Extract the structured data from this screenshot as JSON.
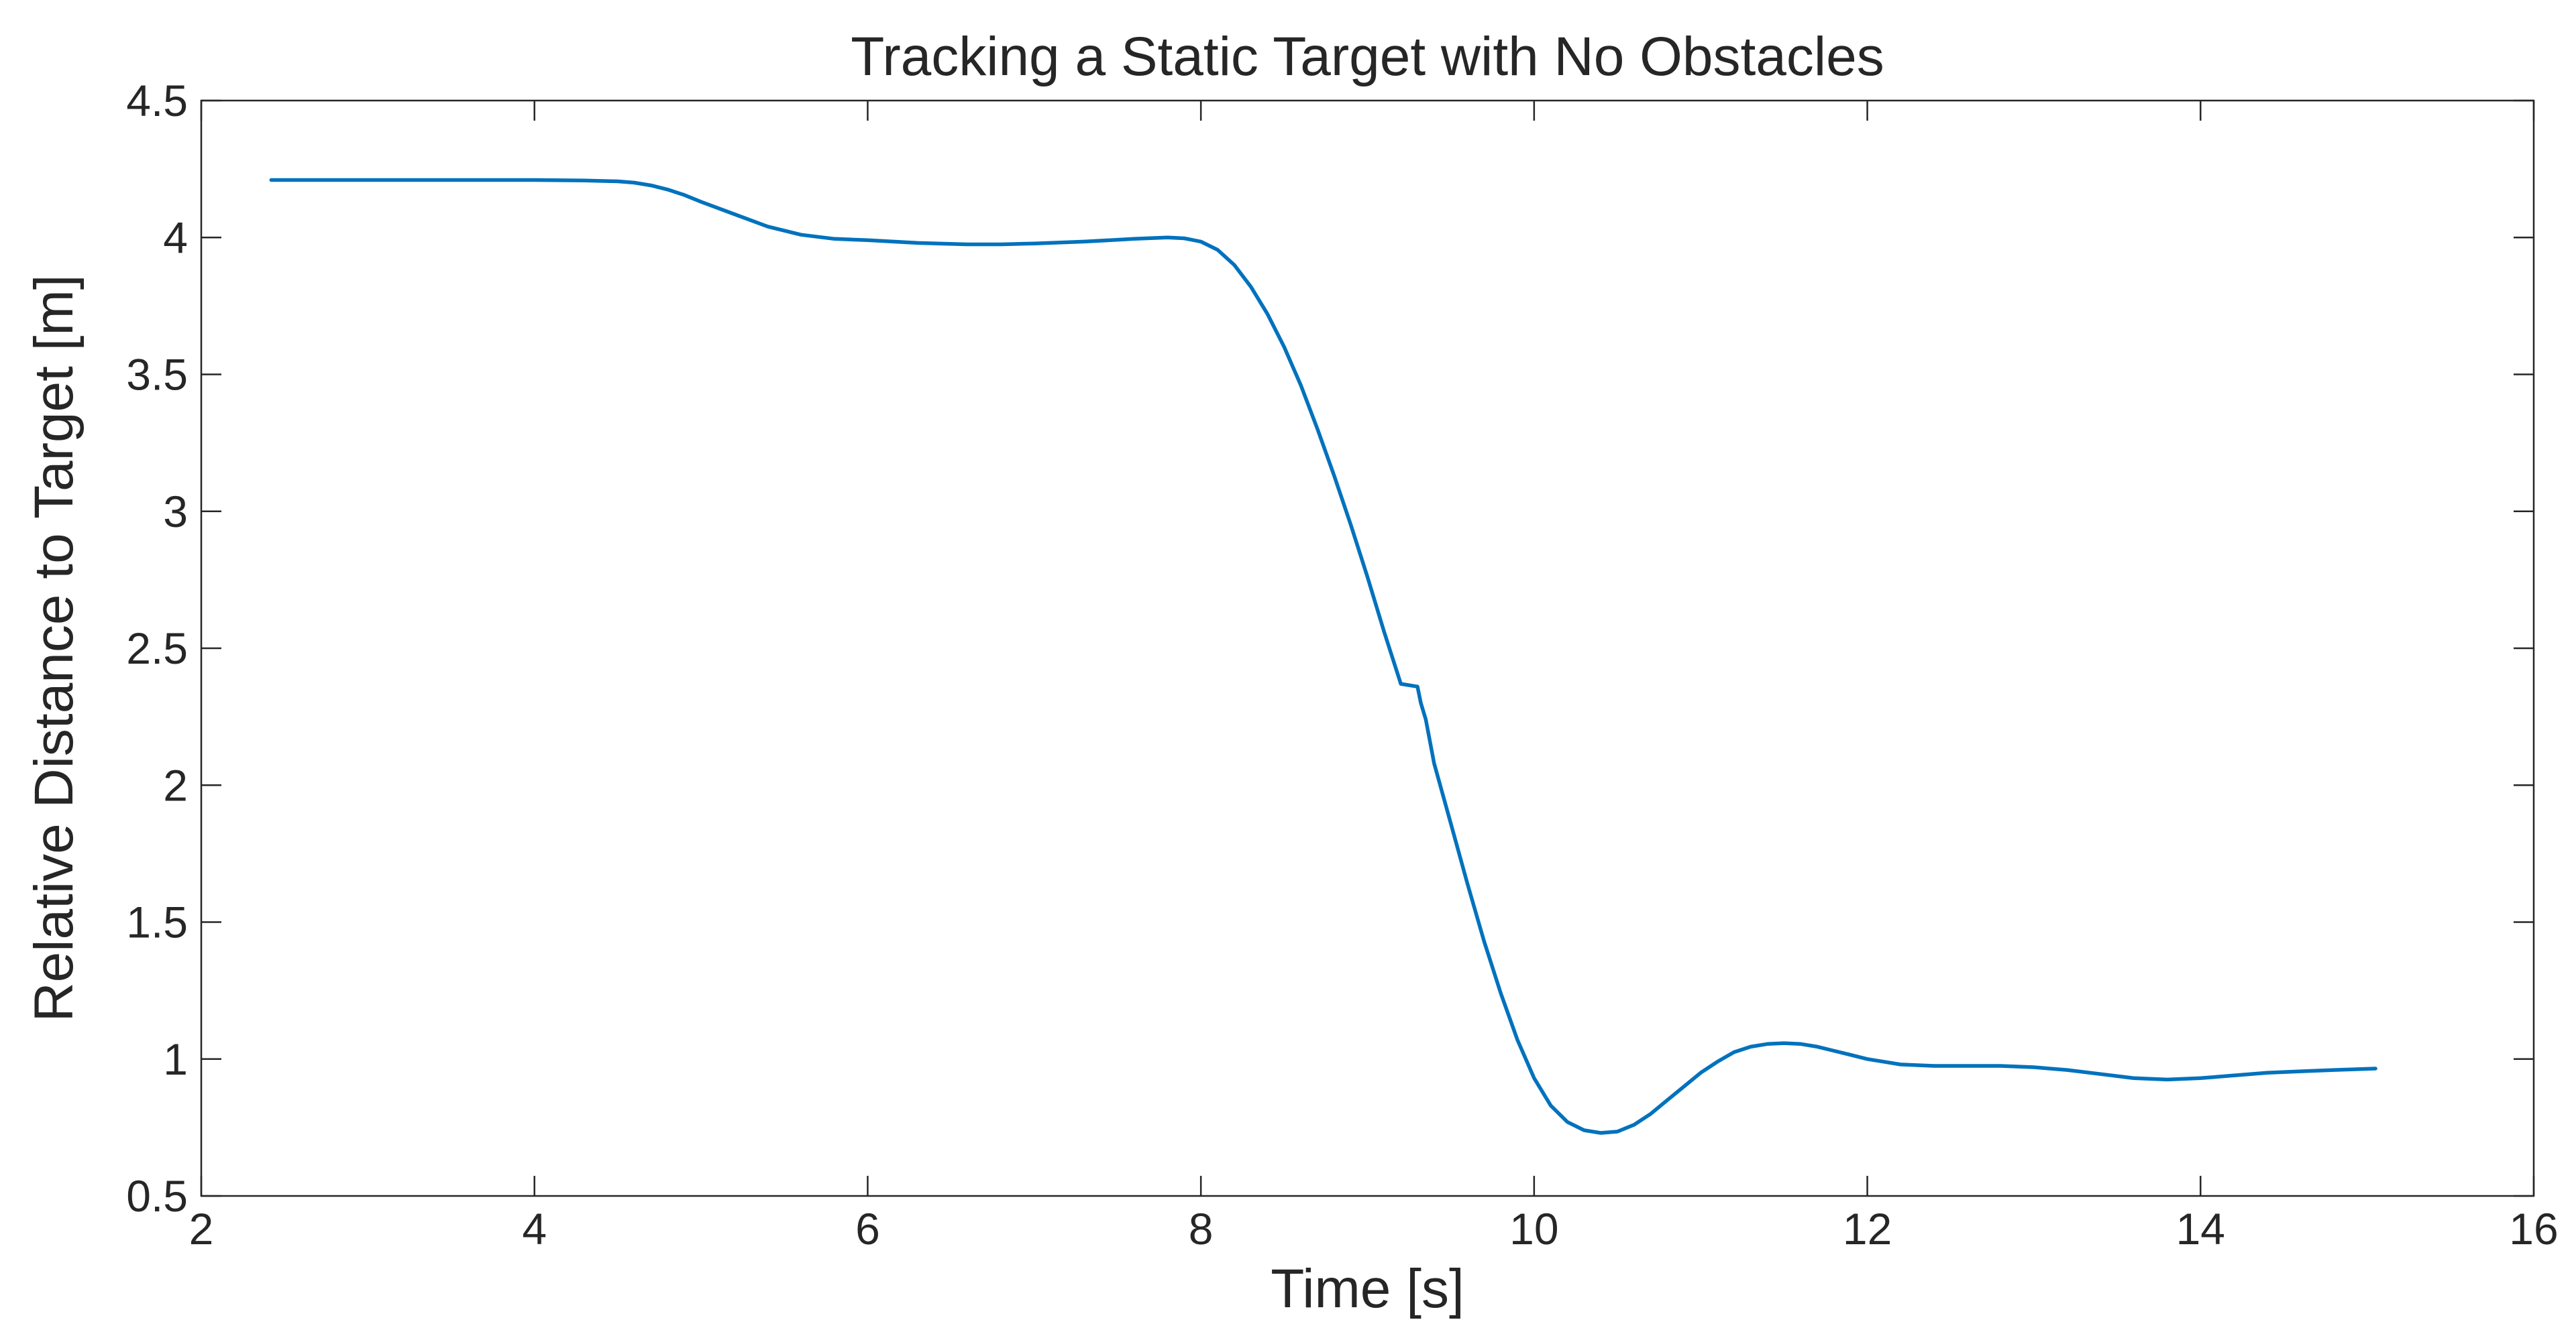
{
  "chart_data": {
    "type": "line",
    "title": "Tracking a Static Target with No Obstacles",
    "xlabel": "Time [s]",
    "ylabel": "Relative Distance to Target [m]",
    "xlim": [
      2,
      16
    ],
    "ylim": [
      0.5,
      4.5
    ],
    "xticks": [
      2,
      4,
      6,
      8,
      10,
      12,
      14,
      16
    ],
    "yticks": [
      0.5,
      1,
      1.5,
      2,
      2.5,
      3,
      3.5,
      4,
      4.5
    ],
    "xtick_labels": [
      "2",
      "4",
      "6",
      "8",
      "10",
      "12",
      "14",
      "16"
    ],
    "ytick_labels": [
      "0.5",
      "1",
      "1.5",
      "2",
      "2.5",
      "3",
      "3.5",
      "4",
      "4.5"
    ],
    "grid": false,
    "box": true,
    "series": [
      {
        "color": "#0072BD",
        "x": [
          2.42,
          3.0,
          3.5,
          4.0,
          4.3,
          4.5,
          4.6,
          4.7,
          4.8,
          4.9,
          5.0,
          5.2,
          5.4,
          5.6,
          5.8,
          6.0,
          6.3,
          6.6,
          6.8,
          7.0,
          7.3,
          7.6,
          7.8,
          7.9,
          8.0,
          8.1,
          8.2,
          8.3,
          8.4,
          8.5,
          8.6,
          8.7,
          8.8,
          8.9,
          9.0,
          9.1,
          9.2,
          9.3,
          9.32,
          9.35,
          9.4,
          9.5,
          9.6,
          9.7,
          9.8,
          9.9,
          10.0,
          10.1,
          10.2,
          10.3,
          10.4,
          10.5,
          10.6,
          10.7,
          10.8,
          10.9,
          11.0,
          11.1,
          11.2,
          11.3,
          11.4,
          11.5,
          11.6,
          11.7,
          11.8,
          11.9,
          12.0,
          12.2,
          12.4,
          12.6,
          12.8,
          13.0,
          13.2,
          13.4,
          13.6,
          13.8,
          14.0,
          14.2,
          14.4,
          14.6,
          14.8,
          15.05
        ],
        "y": [
          4.21,
          4.21,
          4.21,
          4.21,
          4.208,
          4.205,
          4.2,
          4.19,
          4.175,
          4.155,
          4.13,
          4.085,
          4.04,
          4.01,
          3.995,
          3.99,
          3.98,
          3.975,
          3.975,
          3.978,
          3.985,
          3.995,
          4.0,
          3.997,
          3.985,
          3.955,
          3.9,
          3.82,
          3.72,
          3.6,
          3.46,
          3.3,
          3.13,
          2.95,
          2.76,
          2.56,
          2.37,
          2.36,
          2.3,
          2.24,
          2.08,
          1.86,
          1.64,
          1.43,
          1.24,
          1.07,
          0.93,
          0.83,
          0.77,
          0.74,
          0.73,
          0.735,
          0.76,
          0.8,
          0.85,
          0.9,
          0.95,
          0.99,
          1.025,
          1.045,
          1.055,
          1.058,
          1.055,
          1.045,
          1.03,
          1.015,
          1.0,
          0.98,
          0.975,
          0.975,
          0.975,
          0.97,
          0.96,
          0.945,
          0.93,
          0.925,
          0.93,
          0.94,
          0.95,
          0.955,
          0.96,
          0.965
        ]
      }
    ]
  }
}
